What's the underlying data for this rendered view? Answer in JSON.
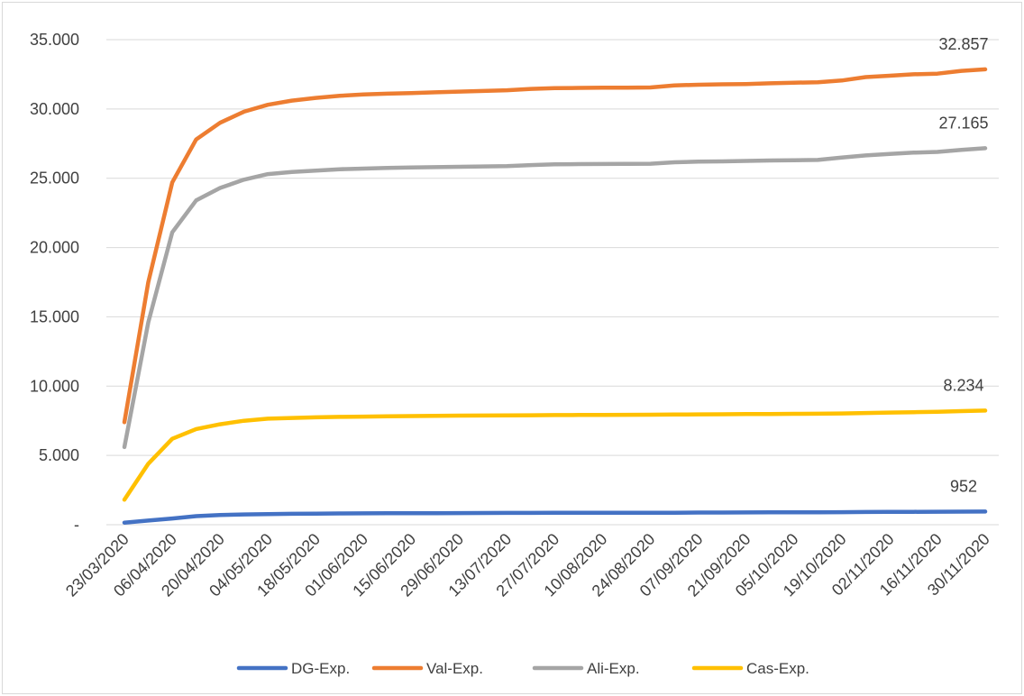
{
  "chart_data": {
    "type": "line",
    "title": "",
    "xlabel": "",
    "ylabel": "",
    "ylim": [
      0,
      35000
    ],
    "grid": "horizontal",
    "legend_position": "bottom",
    "y_ticks": [
      {
        "value": 0,
        "label": "-"
      },
      {
        "value": 5000,
        "label": "5.000"
      },
      {
        "value": 10000,
        "label": "10.000"
      },
      {
        "value": 15000,
        "label": "15.000"
      },
      {
        "value": 20000,
        "label": "20.000"
      },
      {
        "value": 25000,
        "label": "25.000"
      },
      {
        "value": 30000,
        "label": "30.000"
      },
      {
        "value": 35000,
        "label": "35.000"
      }
    ],
    "x": [
      "23/03/2020",
      "30/03/2020",
      "06/04/2020",
      "13/04/2020",
      "20/04/2020",
      "27/04/2020",
      "04/05/2020",
      "11/05/2020",
      "18/05/2020",
      "25/05/2020",
      "01/06/2020",
      "08/06/2020",
      "15/06/2020",
      "22/06/2020",
      "29/06/2020",
      "06/07/2020",
      "13/07/2020",
      "20/07/2020",
      "27/07/2020",
      "03/08/2020",
      "10/08/2020",
      "17/08/2020",
      "24/08/2020",
      "31/08/2020",
      "07/09/2020",
      "14/09/2020",
      "21/09/2020",
      "28/09/2020",
      "05/10/2020",
      "12/10/2020",
      "19/10/2020",
      "26/10/2020",
      "02/11/2020",
      "09/11/2020",
      "16/11/2020",
      "23/11/2020",
      "30/11/2020"
    ],
    "x_tick_labels": [
      "23/03/2020",
      "06/04/2020",
      "20/04/2020",
      "04/05/2020",
      "18/05/2020",
      "01/06/2020",
      "15/06/2020",
      "29/06/2020",
      "13/07/2020",
      "27/07/2020",
      "10/08/2020",
      "24/08/2020",
      "07/09/2020",
      "21/09/2020",
      "05/10/2020",
      "19/10/2020",
      "02/11/2020",
      "16/11/2020",
      "30/11/2020"
    ],
    "series": [
      {
        "name": "DG-Exp.",
        "color": "#4472C4",
        "end_label": "952",
        "values": [
          150,
          300,
          450,
          620,
          700,
          740,
          770,
          790,
          800,
          810,
          820,
          825,
          830,
          835,
          840,
          845,
          850,
          855,
          860,
          860,
          862,
          864,
          866,
          868,
          875,
          880,
          885,
          890,
          895,
          900,
          905,
          915,
          925,
          930,
          935,
          945,
          952
        ]
      },
      {
        "name": "Val-Exp.",
        "color": "#ED7D31",
        "end_label": "32.857",
        "values": [
          7400,
          17500,
          24700,
          27800,
          29000,
          29800,
          30300,
          30600,
          30800,
          30950,
          31050,
          31100,
          31150,
          31200,
          31250,
          31300,
          31350,
          31450,
          31500,
          31520,
          31530,
          31540,
          31550,
          31700,
          31750,
          31780,
          31800,
          31850,
          31900,
          31920,
          32050,
          32300,
          32400,
          32500,
          32550,
          32750,
          32857
        ]
      },
      {
        "name": "Ali-Exp.",
        "color": "#A5A5A5",
        "end_label": "27.165",
        "values": [
          5600,
          14600,
          21100,
          23400,
          24300,
          24900,
          25300,
          25450,
          25550,
          25650,
          25700,
          25750,
          25780,
          25800,
          25830,
          25850,
          25870,
          25950,
          26000,
          26020,
          26030,
          26040,
          26050,
          26150,
          26200,
          26220,
          26250,
          26280,
          26300,
          26320,
          26500,
          26650,
          26750,
          26850,
          26900,
          27050,
          27165
        ]
      },
      {
        "name": "Cas-Exp.",
        "color": "#FFC000",
        "end_label": "8.234",
        "values": [
          1800,
          4400,
          6200,
          6900,
          7250,
          7500,
          7650,
          7700,
          7750,
          7780,
          7800,
          7820,
          7840,
          7860,
          7870,
          7880,
          7890,
          7900,
          7910,
          7920,
          7925,
          7930,
          7935,
          7950,
          7960,
          7970,
          7980,
          7990,
          8000,
          8010,
          8030,
          8060,
          8090,
          8120,
          8150,
          8200,
          8234
        ]
      }
    ]
  }
}
